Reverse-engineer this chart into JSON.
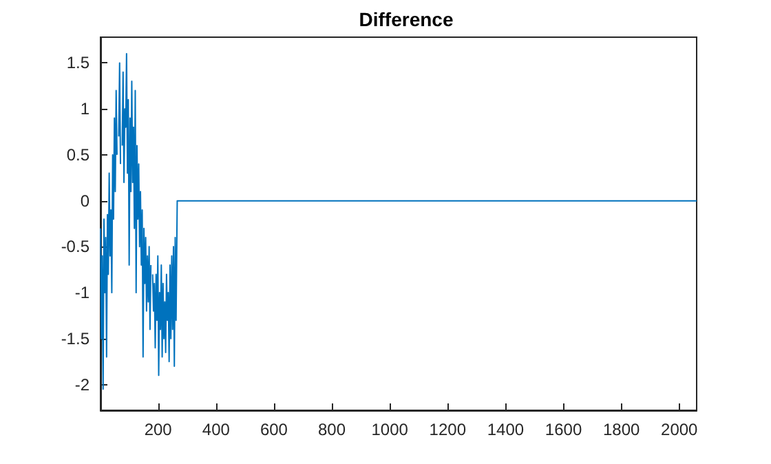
{
  "chart_data": {
    "type": "line",
    "title": "Difference",
    "xlim": [
      1,
      2060
    ],
    "xticks": [
      200,
      400,
      600,
      800,
      1000,
      1200,
      1400,
      1600,
      1800,
      2000
    ],
    "ylim": [
      -2.28,
      1.78
    ],
    "yticks": [
      -2,
      -1.5,
      -1,
      -0.5,
      0,
      0.5,
      1,
      1.5
    ],
    "grid": false,
    "marker": "none",
    "line_style": "solid",
    "series": [
      {
        "color": "#0072bd",
        "x": [
          1,
          4,
          7,
          10,
          13,
          16,
          19,
          22,
          25,
          28,
          31,
          34,
          37,
          40,
          43,
          46,
          49,
          52,
          55,
          58,
          61,
          64,
          67,
          70,
          73,
          76,
          79,
          82,
          85,
          88,
          91,
          94,
          97,
          100,
          103,
          106,
          109,
          112,
          115,
          118,
          121,
          124,
          127,
          130,
          133,
          136,
          139,
          142,
          145,
          148,
          151,
          154,
          157,
          160,
          163,
          166,
          169,
          172,
          175,
          178,
          181,
          184,
          187,
          190,
          193,
          196,
          199,
          202,
          205,
          208,
          211,
          214,
          217,
          220,
          223,
          226,
          229,
          232,
          235,
          238,
          241,
          244,
          247,
          250,
          253,
          256,
          259,
          262,
          265,
          266,
          2060
        ],
        "values": [
          -0.3,
          -1.5,
          -0.6,
          -2.05,
          -0.2,
          -1.0,
          -0.4,
          -1.7,
          -0.15,
          -0.8,
          0.3,
          -0.6,
          -0.1,
          -1.0,
          0.5,
          -0.2,
          0.9,
          0.1,
          1.2,
          0.5,
          null,
          0.7,
          1.5,
          0.4,
          null,
          0.6,
          1.4,
          0.2,
          1.0,
          0.8,
          1.6,
          0.3,
          1.1,
          -0.7,
          0.9,
          0.1,
          1.3,
          0.2,
          0.8,
          -0.3,
          1.2,
          -1.0,
          0.6,
          -0.2,
          0.4,
          -0.5,
          0.1,
          -0.7,
          -0.1,
          -1.7,
          -0.3,
          -0.9,
          -0.4,
          -1.2,
          -0.6,
          -1.1,
          -0.5,
          -1.4,
          -0.7,
          null,
          -0.8,
          -1.2,
          -0.9,
          -1.6,
          -0.8,
          -1.3,
          -0.6,
          -1.9,
          -1.0,
          -1.4,
          -0.7,
          -1.7,
          -0.9,
          -1.5,
          -1.1,
          -1.65,
          -0.8,
          -1.3,
          -1.0,
          -1.75,
          -0.7,
          -1.5,
          -0.6,
          -1.4,
          -0.5,
          -1.8,
          -0.4,
          -1.3,
          -0.3,
          0,
          0
        ]
      }
    ]
  }
}
